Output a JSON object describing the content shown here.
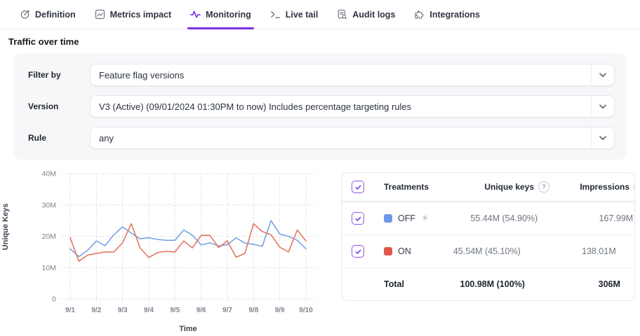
{
  "tabs": [
    {
      "label": "Definition",
      "icon": "definition-icon",
      "active": false
    },
    {
      "label": "Metrics impact",
      "icon": "metrics-impact-icon",
      "active": false
    },
    {
      "label": "Monitoring",
      "icon": "monitoring-icon",
      "active": true
    },
    {
      "label": "Live tail",
      "icon": "live-tail-icon",
      "active": false
    },
    {
      "label": "Audit logs",
      "icon": "audit-logs-icon",
      "active": false
    },
    {
      "label": "Integrations",
      "icon": "integrations-icon",
      "active": false
    }
  ],
  "page_title": "Traffic over time",
  "filters": [
    {
      "label": "Filter by",
      "value": "Feature flag versions"
    },
    {
      "label": "Version",
      "value": "V3 (Active) (09/01/2024 01:30PM to now) Includes percentage targeting rules"
    },
    {
      "label": "Rule",
      "value": "any"
    }
  ],
  "chart_data": {
    "type": "line",
    "title": "Traffic over time",
    "xlabel": "Time",
    "ylabel": "Unique Keys",
    "x_ticks": [
      "9/1",
      "9/2",
      "9/3",
      "9/4",
      "9/5",
      "9/6",
      "9/7",
      "9/8",
      "9/9",
      "9/10"
    ],
    "y_tick_labels": [
      "0",
      "10M",
      "20M",
      "30M",
      "40M"
    ],
    "y_tick_values": [
      0,
      10,
      20,
      30,
      40
    ],
    "ylim": [
      0,
      40
    ],
    "unit": "M",
    "grid": "dotted",
    "points_per_day": 3,
    "series": [
      {
        "name": "OFF",
        "line_color": "#7aa2e4",
        "values": [
          16,
          13.5,
          15.5,
          18.5,
          17,
          20.5,
          23,
          21,
          19.2,
          19.5,
          19,
          18.7,
          18.7,
          22,
          20.3,
          17.2,
          17.9,
          16.9,
          17.3,
          19.5,
          17.8,
          17.4,
          16.8,
          25,
          20.7,
          20,
          18.7,
          16
        ]
      },
      {
        "name": "ON",
        "line_color": "#e3775f",
        "values": [
          19.5,
          12,
          14,
          14.5,
          15,
          15,
          17.9,
          24,
          16.3,
          13.2,
          14.8,
          15.2,
          15,
          18.5,
          16.3,
          20.3,
          20.3,
          16.4,
          18.5,
          13.3,
          14.5,
          24,
          21.5,
          20.5,
          16.5,
          15,
          22,
          18.5
        ]
      }
    ]
  },
  "table": {
    "headers": {
      "treatments": "Treatments",
      "unique_keys": "Unique keys",
      "impressions": "Impressions"
    },
    "rows": [
      {
        "name": "OFF",
        "checked": true,
        "swatch_color": "#6d96e8",
        "default_treatment": true,
        "unique_keys": "55.44M (54.90%)",
        "impressions": "167.99M"
      },
      {
        "name": "ON",
        "checked": true,
        "swatch_color": "#e0574a",
        "default_treatment": false,
        "unique_keys": "45.54M (45.10%)",
        "impressions": "138.01M"
      }
    ],
    "total": {
      "label": "Total",
      "unique_keys": "100.98M (100%)",
      "impressions": "306M"
    }
  },
  "colors": {
    "accent": "#7c2fe3",
    "checkbox_border": "#9257e5",
    "off_line": "#7aa2e4",
    "on_line": "#e3775f",
    "off_swatch": "#6d96e8",
    "on_swatch": "#e0574a",
    "grid": "#cbced7",
    "panel_bg": "#f7f7f9"
  }
}
